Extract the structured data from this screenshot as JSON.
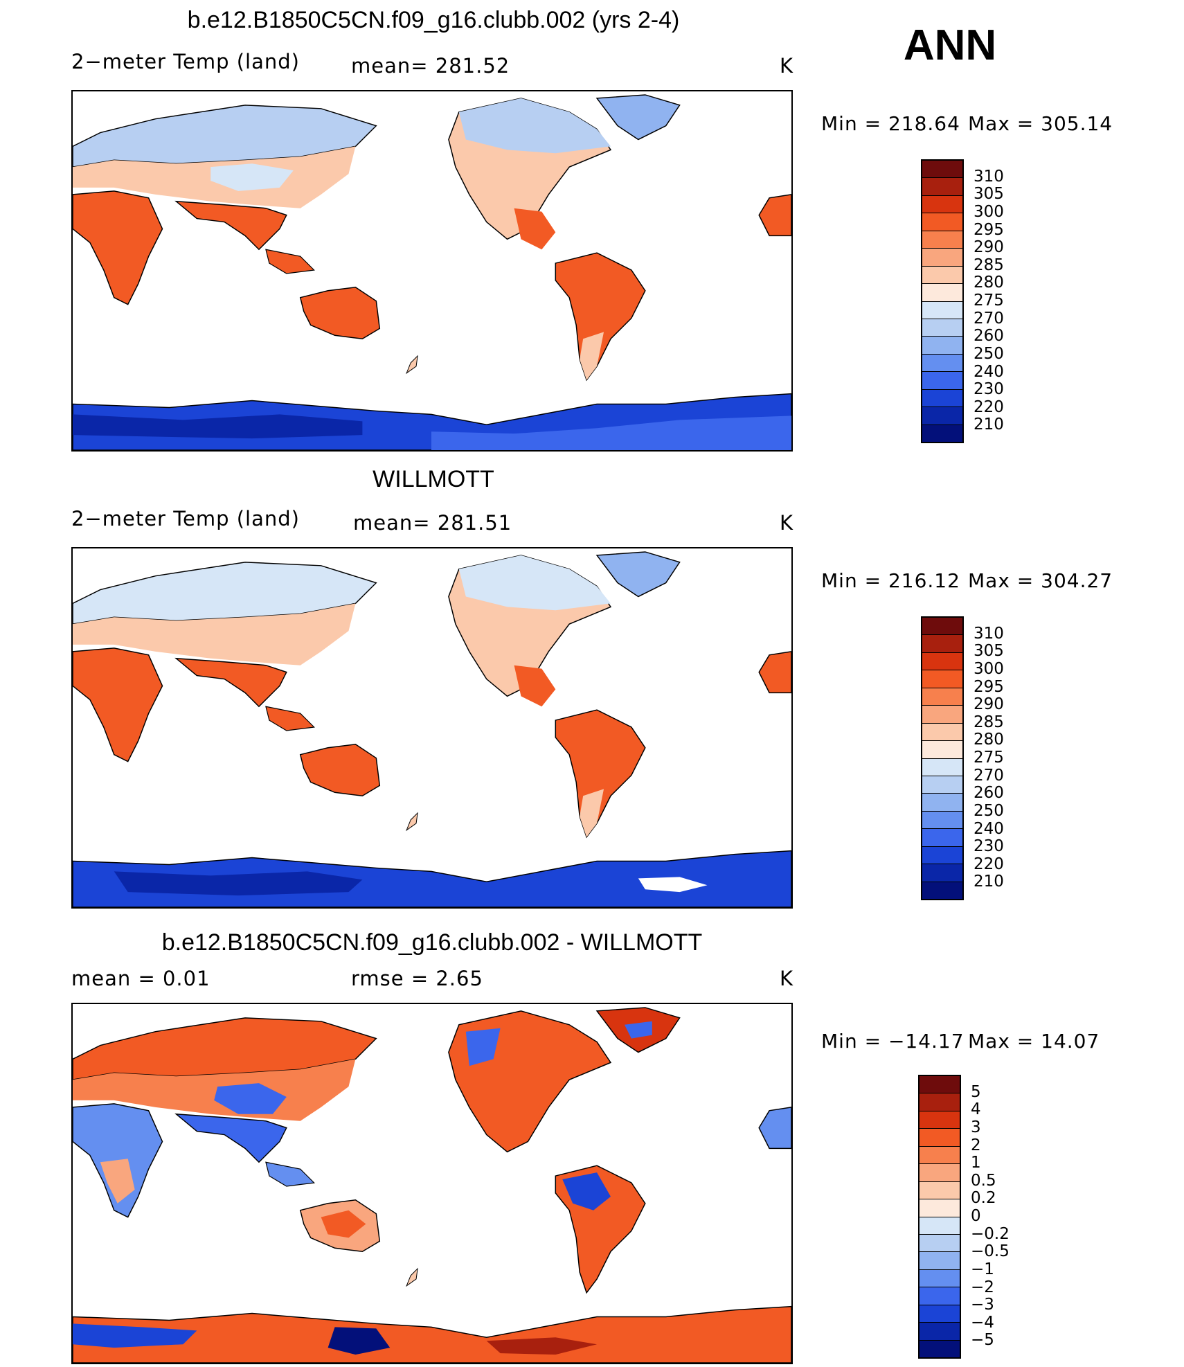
{
  "season": "ANN",
  "panels": [
    {
      "title": "b.e12.B1850C5CN.f09_g16.clubb.002 (yrs 2-4)",
      "left_label": "2−meter Temp (land)",
      "center_label": "mean=  281.52",
      "units": "K",
      "min_label": "Min  =  218.64",
      "max_label": "Max  =  305.14",
      "colorbar_levels": [
        "310",
        "305",
        "300",
        "295",
        "290",
        "285",
        "280",
        "275",
        "270",
        "260",
        "250",
        "240",
        "230",
        "220",
        "210"
      ],
      "colors": [
        "#6e0c0c",
        "#a8200e",
        "#d8340f",
        "#f25a24",
        "#f7804d",
        "#f9a67e",
        "#fbc9ab",
        "#fde9dc",
        "#d6e6f7",
        "#b7cff2",
        "#90b3f0",
        "#648ff0",
        "#3b66ec",
        "#1b44d6",
        "#0a26a8",
        "#03107a"
      ]
    },
    {
      "title": "WILLMOTT",
      "left_label": "2−meter Temp (land)",
      "center_label": "mean=  281.51",
      "units": "K",
      "min_label": "Min  =  216.12",
      "max_label": "Max  =  304.27",
      "colorbar_levels": [
        "310",
        "305",
        "300",
        "295",
        "290",
        "285",
        "280",
        "275",
        "270",
        "260",
        "250",
        "240",
        "230",
        "220",
        "210"
      ],
      "colors": [
        "#6e0c0c",
        "#a8200e",
        "#d8340f",
        "#f25a24",
        "#f7804d",
        "#f9a67e",
        "#fbc9ab",
        "#fde9dc",
        "#d6e6f7",
        "#b7cff2",
        "#90b3f0",
        "#648ff0",
        "#3b66ec",
        "#1b44d6",
        "#0a26a8",
        "#03107a"
      ]
    },
    {
      "title": "b.e12.B1850C5CN.f09_g16.clubb.002 - WILLMOTT",
      "left_label": "mean  =     0.01",
      "center_label": "rmse  =     2.65",
      "units": "K",
      "min_label": "Min  =  −14.17",
      "max_label": "Max  =    14.07",
      "colorbar_levels": [
        "5",
        "4",
        "3",
        "2",
        "1",
        "0.5",
        "0.2",
        "0",
        "−0.2",
        "−0.5",
        "−1",
        "−2",
        "−3",
        "−4",
        "−5"
      ],
      "colors": [
        "#6e0c0c",
        "#a8200e",
        "#d8340f",
        "#f25a24",
        "#f7804d",
        "#f9a67e",
        "#fbc9ab",
        "#fde9dc",
        "#d6e6f7",
        "#b7cff2",
        "#90b3f0",
        "#648ff0",
        "#3b66ec",
        "#1b44d6",
        "#0a26a8",
        "#03107a"
      ]
    }
  ]
}
